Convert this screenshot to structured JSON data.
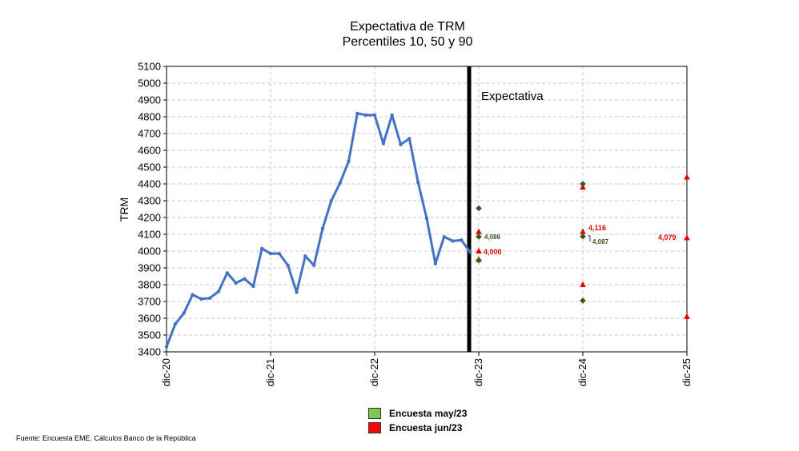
{
  "chart_data": {
    "type": "line",
    "title": "Expectativa de TRM",
    "subtitle": "Percentiles 10, 50 y 90",
    "ylabel": "TRM",
    "ylim": [
      3400,
      5100
    ],
    "yticks": [
      3400,
      3500,
      3600,
      3700,
      3800,
      3900,
      4000,
      4100,
      4200,
      4300,
      4400,
      4500,
      4600,
      4700,
      4800,
      4900,
      5000,
      5100
    ],
    "xticks": [
      "dic-20",
      "dic-21",
      "dic-22",
      "dic-23",
      "dic-24",
      "dic-25"
    ],
    "annotation": "Expectativa",
    "series": [
      {
        "values": [
          3430,
          3565,
          3630,
          3740,
          3715,
          3720,
          3760,
          3870,
          3810,
          3835,
          3790,
          4015,
          3985,
          3985,
          3915,
          3755,
          3970,
          3915,
          4135,
          4300,
          4405,
          4535,
          4820,
          4810,
          4810,
          4640,
          4810,
          4635,
          4670,
          4410,
          4195,
          3925,
          4085,
          4060,
          4065,
          3995
        ]
      }
    ],
    "forecasts": {
      "encuesta_may_23": {
        "dic-23": [
          3945,
          4086,
          4255
        ],
        "dic-24": [
          3705,
          4087,
          4400
        ]
      },
      "encuesta_jun_23": {
        "dic-23": [
          3950,
          4000,
          4115
        ],
        "dic-24": [
          3800,
          4116,
          4380
        ],
        "dic-25": [
          3610,
          4079,
          4440
        ]
      }
    },
    "point_labels": {
      "may_dic23": "4,086",
      "may_dic24": "4,087",
      "jun_dic23": "4,000",
      "jun_dic24": "4,116",
      "jun_dic25": "4,079"
    },
    "legend": [
      {
        "label": "Encuesta may/23",
        "color": "#7ec850"
      },
      {
        "label": "Encuesta jun/23",
        "color": "#ff0000"
      }
    ]
  },
  "colors": {
    "line": "#4472c4",
    "may_marker": "#3a5a1a",
    "jun_marker": "#e00000",
    "grid": "#c8c8c8"
  },
  "source": "Fuente: Encuesta EME. Cálculos Banco de la República"
}
